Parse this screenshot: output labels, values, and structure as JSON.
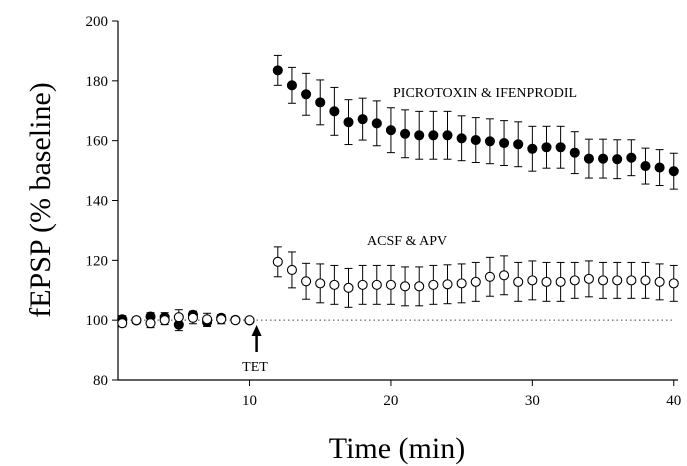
{
  "chart_data": {
    "type": "scatter",
    "xlabel": "Time (min)",
    "ylabel": "fEPSP (% baseline)",
    "xlim": [
      0.7,
      40.3
    ],
    "ylim": [
      80,
      200
    ],
    "xticks": [
      10,
      20,
      30,
      40
    ],
    "yticks": [
      80,
      100,
      120,
      140,
      160,
      180,
      200
    ],
    "grid": false,
    "reference_line": {
      "y": 100,
      "style": "dotted"
    },
    "annotations": {
      "tet": {
        "text": "TET",
        "x": 10.5
      },
      "picrotoxin": {
        "text": "PICROTOXIN & IFENPRODIL"
      },
      "acsf": {
        "text": "ACSF & APV"
      }
    },
    "series": [
      {
        "marker": "filled-circle",
        "points": [
          {
            "x": 1,
            "y": 100.3,
            "err": 1.2
          },
          {
            "x": 2,
            "y": 99.9,
            "err": 1.0
          },
          {
            "x": 3,
            "y": 101.2,
            "err": 1.3
          },
          {
            "x": 4,
            "y": 101.0,
            "err": 1.5
          },
          {
            "x": 5,
            "y": 98.5,
            "err": 2.0
          },
          {
            "x": 6,
            "y": 101.8,
            "err": 1.2
          },
          {
            "x": 7,
            "y": 99.4,
            "err": 1.5
          },
          {
            "x": 8,
            "y": 100.8,
            "err": 1.0
          },
          {
            "x": 9,
            "y": 100.1,
            "err": 0.8
          },
          {
            "x": 10,
            "y": 99.9,
            "err": 0.8
          },
          {
            "x": 12,
            "y": 183.5,
            "err": 5.0
          },
          {
            "x": 13,
            "y": 178.5,
            "err": 6.0
          },
          {
            "x": 14,
            "y": 175.5,
            "err": 7.0
          },
          {
            "x": 15,
            "y": 172.8,
            "err": 7.5
          },
          {
            "x": 16,
            "y": 169.8,
            "err": 8.0
          },
          {
            "x": 17,
            "y": 166.2,
            "err": 7.5
          },
          {
            "x": 18,
            "y": 167.2,
            "err": 7.0
          },
          {
            "x": 19,
            "y": 165.8,
            "err": 7.5
          },
          {
            "x": 20,
            "y": 163.5,
            "err": 7.5
          },
          {
            "x": 21,
            "y": 162.3,
            "err": 8.0
          },
          {
            "x": 22,
            "y": 161.8,
            "err": 8.0
          },
          {
            "x": 23,
            "y": 161.8,
            "err": 8.0
          },
          {
            "x": 24,
            "y": 161.8,
            "err": 8.0
          },
          {
            "x": 25,
            "y": 160.8,
            "err": 7.5
          },
          {
            "x": 26,
            "y": 160.2,
            "err": 7.5
          },
          {
            "x": 27,
            "y": 159.8,
            "err": 7.5
          },
          {
            "x": 28,
            "y": 159.2,
            "err": 7.5
          },
          {
            "x": 29,
            "y": 158.8,
            "err": 7.5
          },
          {
            "x": 30,
            "y": 157.3,
            "err": 7.5
          },
          {
            "x": 31,
            "y": 157.8,
            "err": 7.0
          },
          {
            "x": 32,
            "y": 157.8,
            "err": 7.0
          },
          {
            "x": 33,
            "y": 156.0,
            "err": 7.0
          },
          {
            "x": 34,
            "y": 154.0,
            "err": 6.5
          },
          {
            "x": 35,
            "y": 154.0,
            "err": 6.5
          },
          {
            "x": 36,
            "y": 153.8,
            "err": 6.5
          },
          {
            "x": 37,
            "y": 154.3,
            "err": 6.0
          },
          {
            "x": 38,
            "y": 151.5,
            "err": 6.0
          },
          {
            "x": 39,
            "y": 151.0,
            "err": 6.0
          },
          {
            "x": 40,
            "y": 149.8,
            "err": 6.0
          }
        ]
      },
      {
        "marker": "open-circle",
        "points": [
          {
            "x": 1,
            "y": 99.0,
            "err": 1.2
          },
          {
            "x": 2,
            "y": 100.0,
            "err": 1.0
          },
          {
            "x": 3,
            "y": 99.0,
            "err": 1.5
          },
          {
            "x": 4,
            "y": 100.0,
            "err": 1.5
          },
          {
            "x": 5,
            "y": 101.0,
            "err": 2.5
          },
          {
            "x": 6,
            "y": 100.8,
            "err": 2.0
          },
          {
            "x": 7,
            "y": 100.3,
            "err": 2.0
          },
          {
            "x": 8,
            "y": 100.3,
            "err": 1.5
          },
          {
            "x": 9,
            "y": 100.0,
            "err": 1.0
          },
          {
            "x": 10,
            "y": 100.0,
            "err": 0.8
          },
          {
            "x": 12,
            "y": 119.5,
            "err": 5.0
          },
          {
            "x": 13,
            "y": 116.8,
            "err": 6.0
          },
          {
            "x": 14,
            "y": 113.0,
            "err": 6.0
          },
          {
            "x": 15,
            "y": 112.3,
            "err": 6.5
          },
          {
            "x": 16,
            "y": 111.8,
            "err": 6.5
          },
          {
            "x": 17,
            "y": 110.8,
            "err": 6.5
          },
          {
            "x": 18,
            "y": 111.8,
            "err": 6.5
          },
          {
            "x": 19,
            "y": 111.8,
            "err": 6.5
          },
          {
            "x": 20,
            "y": 111.8,
            "err": 6.5
          },
          {
            "x": 21,
            "y": 111.3,
            "err": 6.5
          },
          {
            "x": 22,
            "y": 111.3,
            "err": 6.5
          },
          {
            "x": 23,
            "y": 111.8,
            "err": 6.5
          },
          {
            "x": 24,
            "y": 112.0,
            "err": 6.5
          },
          {
            "x": 25,
            "y": 112.3,
            "err": 6.5
          },
          {
            "x": 26,
            "y": 112.8,
            "err": 6.5
          },
          {
            "x": 27,
            "y": 114.5,
            "err": 6.5
          },
          {
            "x": 28,
            "y": 115.0,
            "err": 6.5
          },
          {
            "x": 29,
            "y": 112.8,
            "err": 6.5
          },
          {
            "x": 30,
            "y": 113.3,
            "err": 6.5
          },
          {
            "x": 31,
            "y": 112.8,
            "err": 6.5
          },
          {
            "x": 32,
            "y": 112.8,
            "err": 6.5
          },
          {
            "x": 33,
            "y": 113.3,
            "err": 6.0
          },
          {
            "x": 34,
            "y": 113.8,
            "err": 6.0
          },
          {
            "x": 35,
            "y": 113.3,
            "err": 6.0
          },
          {
            "x": 36,
            "y": 113.3,
            "err": 6.0
          },
          {
            "x": 37,
            "y": 113.3,
            "err": 6.0
          },
          {
            "x": 38,
            "y": 113.3,
            "err": 6.0
          },
          {
            "x": 39,
            "y": 112.8,
            "err": 6.0
          },
          {
            "x": 40,
            "y": 112.3,
            "err": 6.0
          }
        ]
      }
    ],
    "colors": {
      "marker": "#000000",
      "axis": "#000000"
    }
  }
}
